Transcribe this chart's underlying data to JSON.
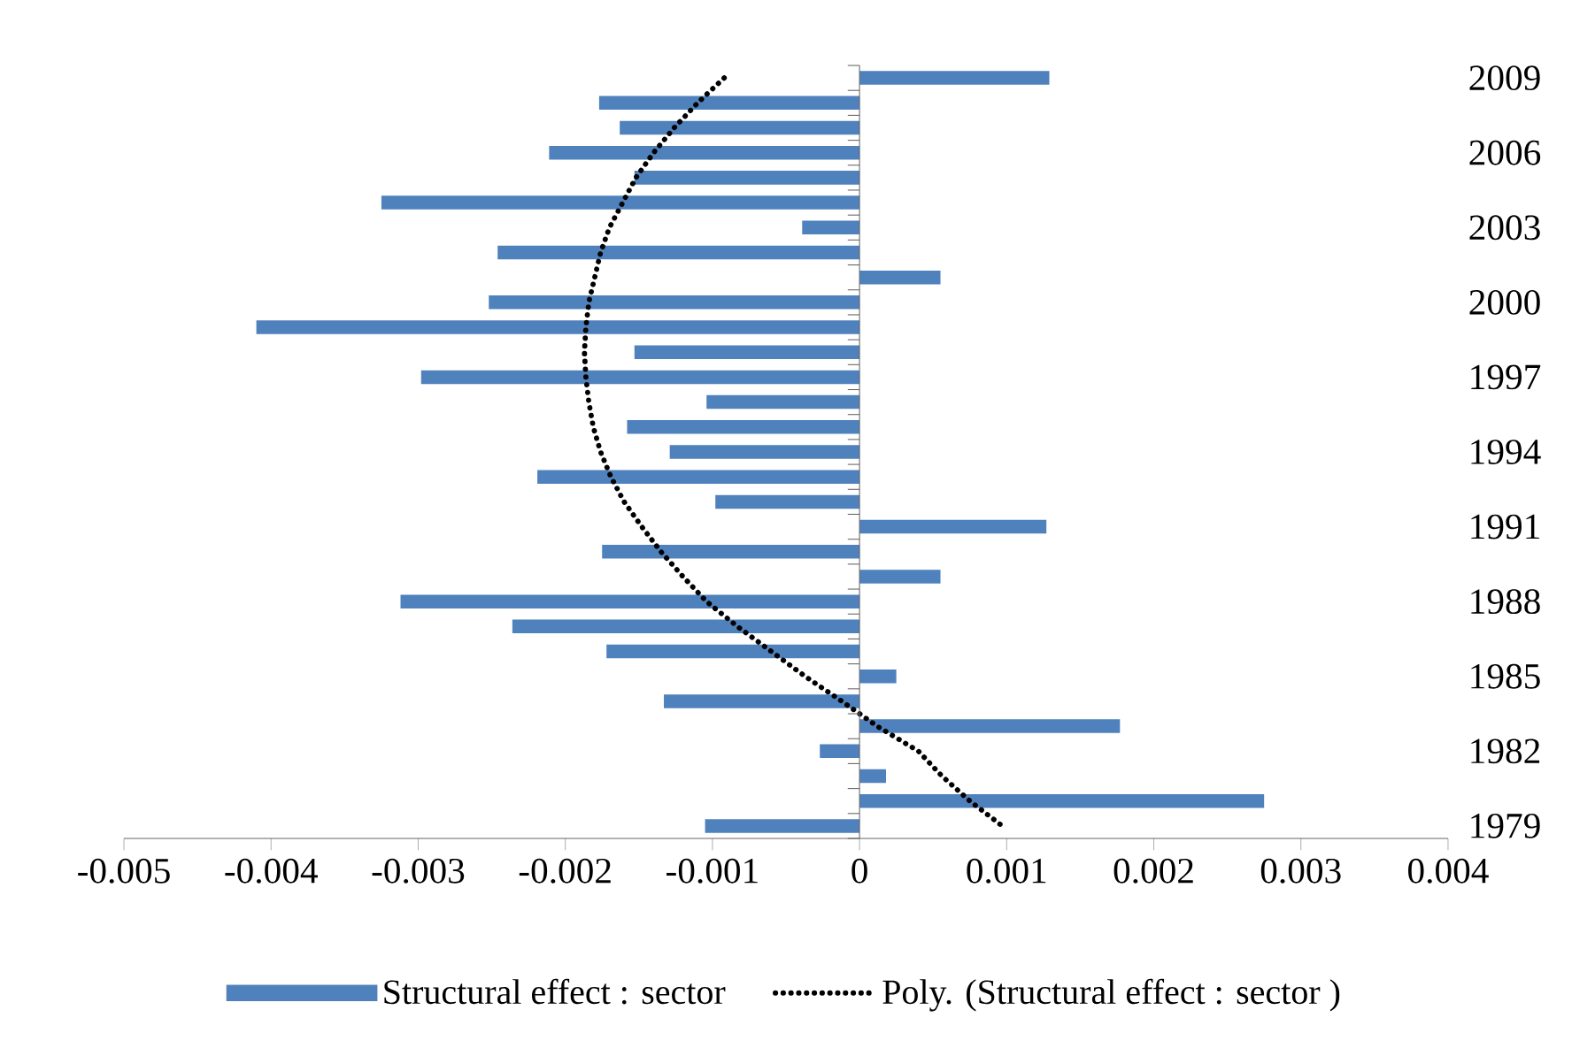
{
  "chart_data": {
    "type": "bar",
    "orientation": "horizontal",
    "categories": [
      "2009",
      null,
      null,
      "2006",
      null,
      null,
      "2003",
      null,
      null,
      "2000",
      null,
      null,
      "1997",
      null,
      null,
      "1994",
      null,
      null,
      "1991",
      null,
      null,
      "1988",
      null,
      null,
      "1985",
      null,
      null,
      "1982",
      null,
      null,
      "1979"
    ],
    "series": [
      {
        "name": "Structural effect : sector",
        "color": "#4f81bd",
        "values": [
          0.00129,
          -0.00177,
          -0.00163,
          -0.00211,
          -0.00153,
          -0.00325,
          -0.00039,
          -0.00246,
          0.00055,
          -0.00252,
          -0.0041,
          -0.00153,
          -0.00298,
          -0.00104,
          -0.00158,
          -0.00129,
          -0.00219,
          -0.00098,
          0.00127,
          -0.00175,
          0.00055,
          -0.00312,
          -0.00236,
          -0.00172,
          0.00025,
          -0.00133,
          0.00177,
          -0.00027,
          0.00018,
          0.00275,
          -0.00105
        ]
      },
      {
        "name": "Poly. (Structural effect : sector )",
        "type": "line",
        "color": "#000000",
        "line_style": "dotted",
        "values": [
          -0.00092,
          -0.0011,
          -0.00126,
          -0.0014,
          -0.00152,
          -0.00161,
          -0.0017,
          -0.00176,
          -0.0018,
          -0.00184,
          -0.00186,
          -0.00187,
          -0.00186,
          -0.00184,
          -0.00181,
          -0.00176,
          -0.00169,
          -0.0016,
          -0.00148,
          -0.00135,
          -0.0012,
          -0.00104,
          -0.00083,
          -0.0006,
          -0.00037,
          -0.00012,
          0.00012,
          0.0004,
          0.00056,
          0.00075,
          0.00097
        ]
      }
    ],
    "xlim": [
      -0.005,
      0.004
    ],
    "xticks": [
      -0.005,
      -0.004,
      -0.003,
      -0.002,
      -0.001,
      0,
      0.001,
      0.002,
      0.003,
      0.004
    ],
    "legend": "bottom",
    "marker": "none"
  }
}
